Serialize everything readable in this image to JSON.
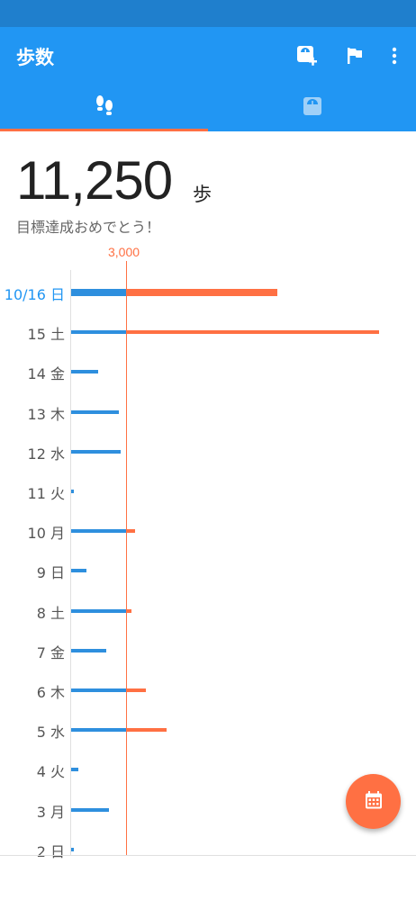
{
  "app": {
    "title": "歩数"
  },
  "toolbar": {
    "icons": [
      "scale-add-icon",
      "flag-icon",
      "more-vert-icon"
    ]
  },
  "tabs": [
    {
      "name": "steps",
      "icon": "footsteps-icon",
      "selected": true
    },
    {
      "name": "weight",
      "icon": "scale-icon",
      "selected": false
    }
  ],
  "summary": {
    "steps": "11,250",
    "unit": "歩",
    "message": "目標達成おめでとう！"
  },
  "colors": {
    "primary": "#2196f3",
    "accent": "#ff7043",
    "bar": "#2e8fde"
  },
  "chart_data": {
    "type": "bar",
    "orientation": "horizontal",
    "goal": 3000,
    "goal_label": "3,000",
    "categories": [
      "10/16 日",
      "15 土",
      "14 金",
      "13 木",
      "12 水",
      "11 火",
      "10 月",
      "9 日",
      "8 土",
      "7 金",
      "6 木",
      "5 水",
      "4 火",
      "3 月",
      "2 日"
    ],
    "values": [
      11250,
      16800,
      1450,
      2600,
      2700,
      150,
      3500,
      850,
      3300,
      1900,
      4100,
      5200,
      400,
      2050,
      150
    ],
    "today_index": 0,
    "xlim": [
      0,
      17100
    ]
  }
}
